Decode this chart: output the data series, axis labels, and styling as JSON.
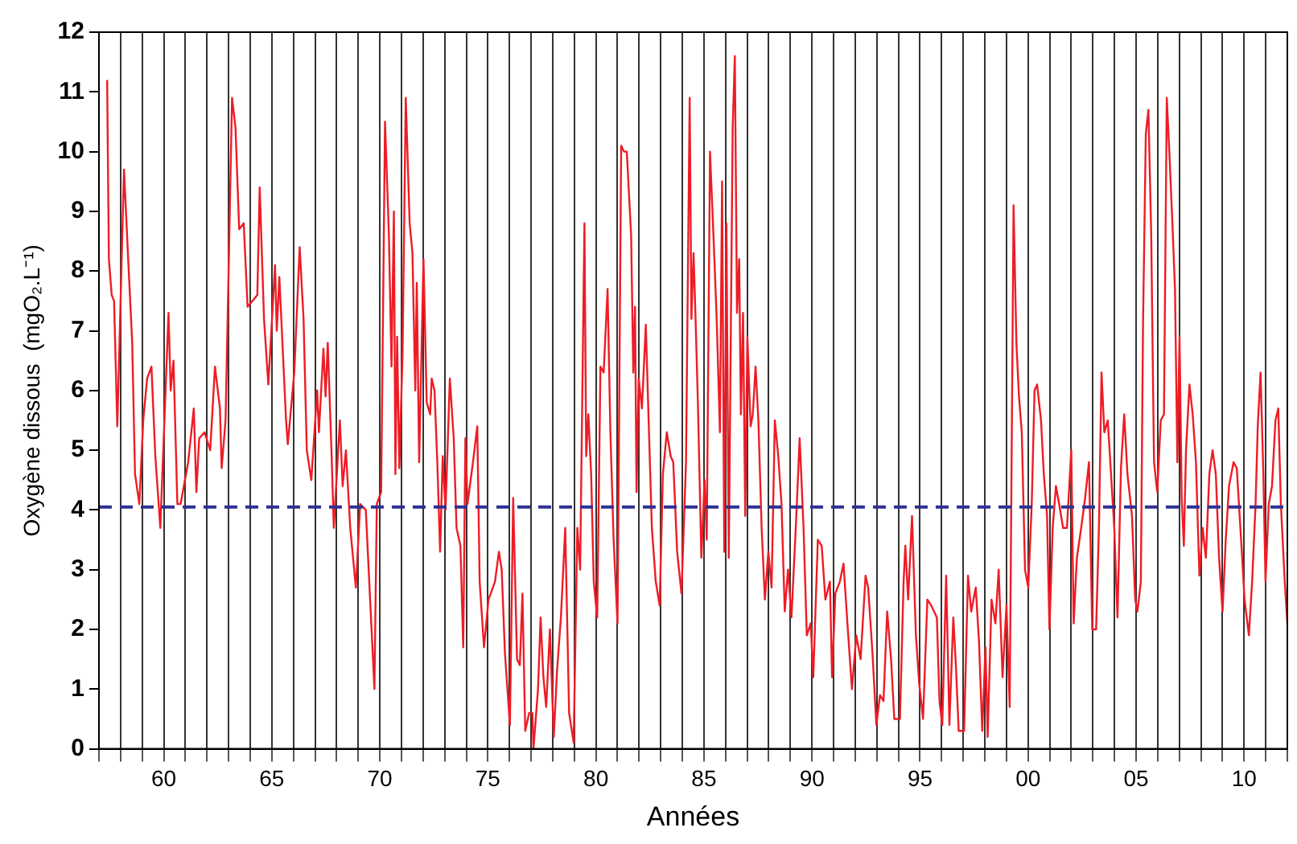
{
  "chart_data": {
    "type": "line",
    "xlabel": "Années",
    "ylabel": "Oxygène dissous  (mgO₂.L⁻¹)",
    "xlim": [
      1957,
      2012
    ],
    "ylim": [
      0,
      12
    ],
    "yticks": [
      0,
      1,
      2,
      3,
      4,
      5,
      6,
      7,
      8,
      9,
      10,
      11,
      12
    ],
    "xticks": [
      {
        "value": 1957,
        "label": null
      },
      {
        "value": 1958,
        "label": null
      },
      {
        "value": 1959,
        "label": null
      },
      {
        "value": 1960,
        "label": "60"
      },
      {
        "value": 1961,
        "label": null
      },
      {
        "value": 1962,
        "label": null
      },
      {
        "value": 1963,
        "label": null
      },
      {
        "value": 1964,
        "label": null
      },
      {
        "value": 1965,
        "label": "65"
      },
      {
        "value": 1966,
        "label": null
      },
      {
        "value": 1967,
        "label": null
      },
      {
        "value": 1968,
        "label": null
      },
      {
        "value": 1969,
        "label": null
      },
      {
        "value": 1970,
        "label": "70"
      },
      {
        "value": 1971,
        "label": null
      },
      {
        "value": 1972,
        "label": null
      },
      {
        "value": 1973,
        "label": null
      },
      {
        "value": 1974,
        "label": null
      },
      {
        "value": 1975,
        "label": "75"
      },
      {
        "value": 1976,
        "label": null
      },
      {
        "value": 1977,
        "label": null
      },
      {
        "value": 1978,
        "label": null
      },
      {
        "value": 1979,
        "label": null
      },
      {
        "value": 1980,
        "label": "80"
      },
      {
        "value": 1981,
        "label": null
      },
      {
        "value": 1982,
        "label": null
      },
      {
        "value": 1983,
        "label": null
      },
      {
        "value": 1984,
        "label": null
      },
      {
        "value": 1985,
        "label": "85"
      },
      {
        "value": 1986,
        "label": null
      },
      {
        "value": 1987,
        "label": null
      },
      {
        "value": 1988,
        "label": null
      },
      {
        "value": 1989,
        "label": null
      },
      {
        "value": 1990,
        "label": "90"
      },
      {
        "value": 1991,
        "label": null
      },
      {
        "value": 1992,
        "label": null
      },
      {
        "value": 1993,
        "label": null
      },
      {
        "value": 1994,
        "label": null
      },
      {
        "value": 1995,
        "label": "95"
      },
      {
        "value": 1996,
        "label": null
      },
      {
        "value": 1997,
        "label": null
      },
      {
        "value": 1998,
        "label": null
      },
      {
        "value": 1999,
        "label": null
      },
      {
        "value": 2000,
        "label": "00"
      },
      {
        "value": 2001,
        "label": null
      },
      {
        "value": 2002,
        "label": null
      },
      {
        "value": 2003,
        "label": null
      },
      {
        "value": 2004,
        "label": null
      },
      {
        "value": 2005,
        "label": "05"
      },
      {
        "value": 2006,
        "label": null
      },
      {
        "value": 2007,
        "label": null
      },
      {
        "value": 2008,
        "label": null
      },
      {
        "value": 2009,
        "label": null
      },
      {
        "value": 2010,
        "label": "10"
      },
      {
        "value": 2011,
        "label": null
      },
      {
        "value": 2012,
        "label": null
      }
    ],
    "grid": "x",
    "ref_lines": [
      {
        "axis": "y",
        "value": 4.05,
        "label": null,
        "color": "#2e3192",
        "line_style": "dashed"
      }
    ],
    "series": [
      {
        "color": "#ee1c25",
        "x": [
          1957.38,
          1957.46,
          1957.59,
          1957.7,
          1957.85,
          1958.16,
          1958.34,
          1958.54,
          1958.67,
          1958.87,
          1959.05,
          1959.23,
          1959.43,
          1959.61,
          1959.84,
          1960.22,
          1960.32,
          1960.45,
          1960.63,
          1960.78,
          1961.13,
          1961.39,
          1961.51,
          1961.64,
          1961.89,
          1962.15,
          1962.37,
          1962.6,
          1962.68,
          1962.86,
          1962.99,
          1963.16,
          1963.32,
          1963.49,
          1963.7,
          1963.88,
          1964.33,
          1964.44,
          1964.64,
          1964.84,
          1965.15,
          1965.23,
          1965.35,
          1965.66,
          1965.74,
          1966.04,
          1966.29,
          1966.47,
          1966.62,
          1966.83,
          1967.1,
          1967.18,
          1967.39,
          1967.49,
          1967.59,
          1967.77,
          1967.87,
          1968.15,
          1968.28,
          1968.43,
          1968.63,
          1968.89,
          1969.09,
          1969.35,
          1969.55,
          1969.75,
          1969.86,
          1970.06,
          1970.24,
          1970.42,
          1970.54,
          1970.65,
          1970.72,
          1970.8,
          1970.9,
          1971.05,
          1971.2,
          1971.38,
          1971.51,
          1971.64,
          1971.71,
          1971.82,
          1972.02,
          1972.17,
          1972.33,
          1972.4,
          1972.53,
          1972.66,
          1972.79,
          1972.91,
          1973.04,
          1973.24,
          1973.42,
          1973.55,
          1973.73,
          1973.86,
          1973.96,
          1974.06,
          1974.31,
          1974.51,
          1974.62,
          1974.82,
          1975.03,
          1975.33,
          1975.51,
          1975.64,
          1975.79,
          1976.02,
          1976.17,
          1976.35,
          1976.48,
          1976.6,
          1976.73,
          1976.91,
          1977.06,
          1977.11,
          1977.32,
          1977.44,
          1977.57,
          1977.7,
          1977.87,
          1978.05,
          1978.2,
          1978.38,
          1978.58,
          1978.76,
          1978.97,
          1979.14,
          1979.27,
          1979.47,
          1979.55,
          1979.65,
          1979.78,
          1979.9,
          1980.06,
          1980.21,
          1980.36,
          1980.54,
          1980.67,
          1980.82,
          1981.0,
          1981.17,
          1981.3,
          1981.43,
          1981.63,
          1981.73,
          1981.81,
          1981.88,
          1981.98,
          1982.13,
          1982.31,
          1982.44,
          1982.59,
          1982.77,
          1982.95,
          1983.1,
          1983.28,
          1983.46,
          1983.58,
          1983.76,
          1983.96,
          1984.17,
          1984.34,
          1984.42,
          1984.52,
          1984.62,
          1984.72,
          1984.88,
          1985.03,
          1985.13,
          1985.28,
          1985.44,
          1985.59,
          1985.74,
          1985.84,
          1985.94,
          1986.04,
          1986.15,
          1986.25,
          1986.33,
          1986.43,
          1986.53,
          1986.63,
          1986.71,
          1986.81,
          1986.91,
          1987.01,
          1987.16,
          1987.26,
          1987.39,
          1987.52,
          1987.67,
          1987.82,
          1987.98,
          1988.13,
          1988.28,
          1988.44,
          1988.59,
          1988.74,
          1988.89,
          1989.05,
          1989.25,
          1989.43,
          1989.61,
          1989.76,
          1989.94,
          1990.06,
          1990.27,
          1990.45,
          1990.62,
          1990.83,
          1990.93,
          1991.08,
          1991.29,
          1991.46,
          1991.64,
          1991.85,
          1992.05,
          1992.25,
          1992.48,
          1992.6,
          1992.8,
          1992.98,
          1993.15,
          1993.31,
          1993.48,
          1993.66,
          1993.81,
          1994.07,
          1994.24,
          1994.32,
          1994.45,
          1994.63,
          1994.81,
          1994.96,
          1995.14,
          1995.34,
          1995.52,
          1995.78,
          1995.9,
          1996.03,
          1996.21,
          1996.36,
          1996.54,
          1996.66,
          1996.79,
          1997.04,
          1997.22,
          1997.37,
          1997.58,
          1997.73,
          1997.88,
          1998.03,
          1998.13,
          1998.31,
          1998.49,
          1998.64,
          1998.82,
          1999.0,
          1999.15,
          1999.33,
          1999.46,
          1999.58,
          1999.71,
          1999.86,
          2000.01,
          2000.17,
          2000.3,
          2000.42,
          2000.6,
          2000.73,
          2000.88,
          2000.99,
          2001.14,
          2001.29,
          2001.44,
          2001.62,
          2001.8,
          2002.0,
          2002.11,
          2002.26,
          2002.46,
          2002.64,
          2002.82,
          2002.97,
          2003.15,
          2003.28,
          2003.4,
          2003.53,
          2003.69,
          2003.84,
          2003.99,
          2004.14,
          2004.3,
          2004.45,
          2004.6,
          2004.81,
          2004.96,
          2005.06,
          2005.22,
          2005.32,
          2005.45,
          2005.57,
          2005.7,
          2005.83,
          2005.98,
          2006.14,
          2006.29,
          2006.42,
          2006.55,
          2006.68,
          2006.8,
          2006.91,
          2007.01,
          2007.11,
          2007.21,
          2007.31,
          2007.47,
          2007.62,
          2007.77,
          2007.93,
          2008.08,
          2008.23,
          2008.39,
          2008.54,
          2008.69,
          2008.84,
          2009.0,
          2009.15,
          2009.3,
          2009.51,
          2009.66,
          2009.86,
          2010.02,
          2010.22,
          2010.37,
          2010.53,
          2010.63,
          2010.76,
          2010.89,
          2010.99,
          2011.14,
          2011.29,
          2011.45,
          2011.58,
          2011.7,
          2011.88,
          2012.0
        ],
        "values": [
          11.2,
          8.2,
          7.6,
          7.5,
          5.4,
          9.7,
          8.3,
          6.8,
          4.6,
          4.1,
          5.5,
          6.2,
          6.4,
          4.9,
          3.7,
          7.3,
          6.0,
          6.5,
          4.1,
          4.1,
          4.8,
          5.7,
          4.3,
          5.2,
          5.3,
          5.0,
          6.4,
          5.7,
          4.7,
          5.5,
          7.8,
          10.9,
          10.4,
          8.7,
          8.8,
          7.4,
          7.6,
          9.4,
          7.2,
          6.1,
          8.1,
          7.0,
          7.9,
          5.5,
          5.1,
          6.3,
          8.4,
          7.2,
          5.0,
          4.5,
          6.0,
          5.3,
          6.7,
          5.9,
          6.8,
          4.9,
          3.7,
          5.5,
          4.4,
          5.0,
          3.7,
          2.7,
          4.1,
          4.0,
          2.5,
          1.0,
          4.1,
          4.3,
          10.5,
          8.6,
          6.4,
          9.0,
          4.6,
          6.9,
          4.7,
          6.6,
          10.9,
          8.8,
          8.3,
          6.0,
          7.8,
          4.8,
          8.2,
          5.8,
          5.6,
          6.2,
          6.0,
          4.8,
          3.3,
          4.9,
          4.0,
          6.2,
          5.2,
          3.7,
          3.4,
          1.7,
          5.2,
          4.1,
          4.8,
          5.4,
          2.8,
          1.7,
          2.5,
          2.8,
          3.3,
          3.0,
          1.6,
          0.4,
          4.2,
          1.5,
          1.4,
          2.6,
          0.3,
          0.6,
          0.6,
          0.0,
          1.0,
          2.2,
          1.2,
          0.7,
          2.0,
          0.2,
          1.3,
          2.2,
          3.7,
          0.6,
          0.1,
          3.7,
          3.0,
          8.8,
          4.9,
          5.6,
          4.6,
          2.8,
          2.2,
          6.4,
          6.3,
          7.7,
          5.3,
          3.5,
          2.1,
          10.1,
          10.0,
          10.0,
          8.6,
          6.3,
          7.4,
          4.3,
          6.2,
          5.7,
          7.1,
          5.5,
          3.7,
          2.8,
          2.4,
          4.6,
          5.3,
          4.9,
          4.8,
          3.3,
          2.6,
          4.8,
          10.9,
          7.2,
          8.3,
          7.1,
          5.8,
          3.2,
          4.5,
          3.5,
          10.0,
          8.6,
          7.2,
          5.3,
          9.5,
          3.3,
          8.8,
          3.2,
          7.2,
          10.4,
          11.6,
          7.3,
          8.2,
          5.6,
          7.3,
          3.9,
          6.9,
          5.4,
          5.6,
          6.4,
          5.5,
          3.7,
          2.5,
          3.3,
          2.7,
          5.5,
          4.9,
          4.1,
          2.3,
          3.0,
          2.2,
          3.7,
          5.2,
          3.7,
          1.9,
          2.1,
          1.2,
          3.5,
          3.4,
          2.5,
          2.8,
          1.2,
          2.6,
          2.8,
          3.1,
          2.1,
          1.0,
          1.9,
          1.5,
          2.9,
          2.7,
          1.6,
          0.4,
          0.9,
          0.8,
          2.3,
          1.5,
          0.5,
          0.5,
          2.8,
          3.4,
          2.5,
          3.9,
          1.9,
          1.1,
          0.5,
          2.5,
          2.4,
          2.2,
          0.8,
          0.4,
          2.9,
          0.4,
          2.2,
          1.4,
          0.3,
          0.3,
          2.9,
          2.3,
          2.7,
          1.8,
          0.3,
          1.7,
          0.2,
          2.5,
          2.1,
          3.0,
          1.2,
          2.4,
          0.7,
          9.1,
          6.8,
          5.9,
          5.3,
          3.0,
          2.7,
          4.1,
          6.0,
          6.1,
          5.5,
          4.6,
          3.9,
          2.0,
          3.7,
          4.4,
          4.1,
          3.7,
          3.7,
          5.0,
          2.1,
          3.2,
          3.7,
          4.2,
          4.8,
          2.0,
          2.0,
          3.7,
          6.3,
          5.3,
          5.5,
          4.6,
          3.7,
          2.2,
          4.7,
          5.6,
          4.6,
          3.9,
          2.5,
          2.3,
          2.8,
          7.1,
          10.3,
          10.7,
          8.6,
          4.8,
          4.3,
          5.5,
          5.6,
          10.9,
          9.9,
          8.8,
          7.7,
          4.8,
          6.9,
          4.2,
          3.4,
          5.0,
          6.1,
          5.6,
          4.8,
          2.9,
          3.7,
          3.2,
          4.6,
          5.0,
          4.6,
          3.2,
          2.3,
          3.5,
          4.4,
          4.8,
          4.7,
          3.5,
          2.5,
          1.9,
          2.8,
          4.1,
          5.4,
          6.3,
          4.6,
          2.8,
          4.1,
          4.4,
          5.5,
          5.7,
          4.1,
          2.8,
          2.1
        ]
      }
    ]
  }
}
